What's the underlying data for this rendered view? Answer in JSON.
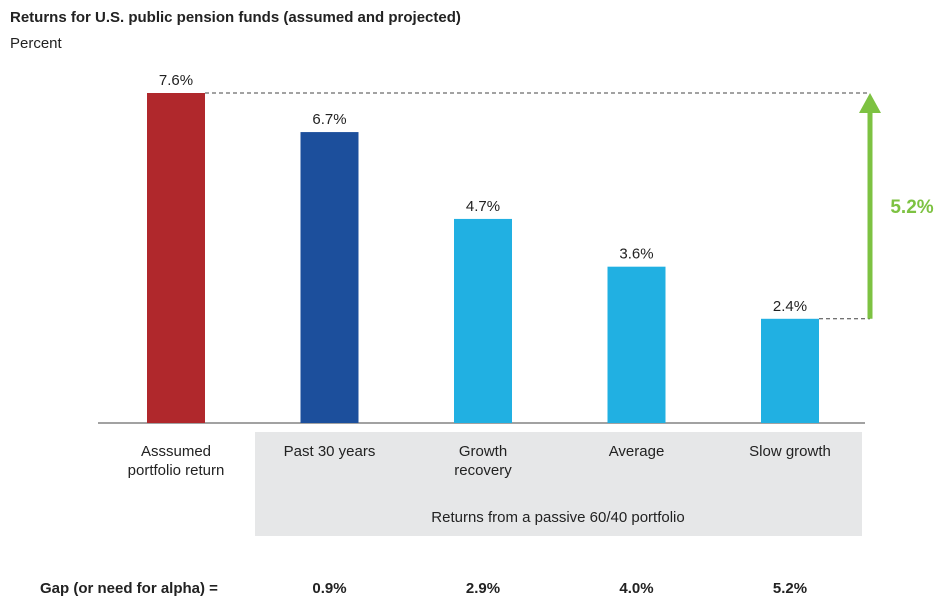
{
  "chart_data": {
    "type": "bar",
    "title": "Returns for U.S. public pension funds (assumed and projected)",
    "subtitle": "Percent",
    "categories": [
      "Asssumed\nportfolio return",
      "Past 30 years",
      "Growth\nrecovery",
      "Average",
      "Slow growth"
    ],
    "values": [
      7.6,
      6.7,
      4.7,
      3.6,
      2.4
    ],
    "value_labels": [
      "7.6%",
      "6.7%",
      "4.7%",
      "3.6%",
      "2.4%"
    ],
    "colors": [
      "#b0282c",
      "#1c4f9c",
      "#21b0e2",
      "#21b0e2",
      "#21b0e2"
    ],
    "group_label": "Returns from a passive 60/40 portfolio",
    "annotation": {
      "value": 5.2,
      "label": "5.2%",
      "color": "#7dc242"
    },
    "gap": {
      "label": "Gap (or need for alpha) =",
      "values": [
        0.9,
        2.9,
        4.0,
        5.2
      ],
      "value_labels": [
        "0.9%",
        "2.9%",
        "4.0%",
        "5.2%"
      ]
    }
  }
}
